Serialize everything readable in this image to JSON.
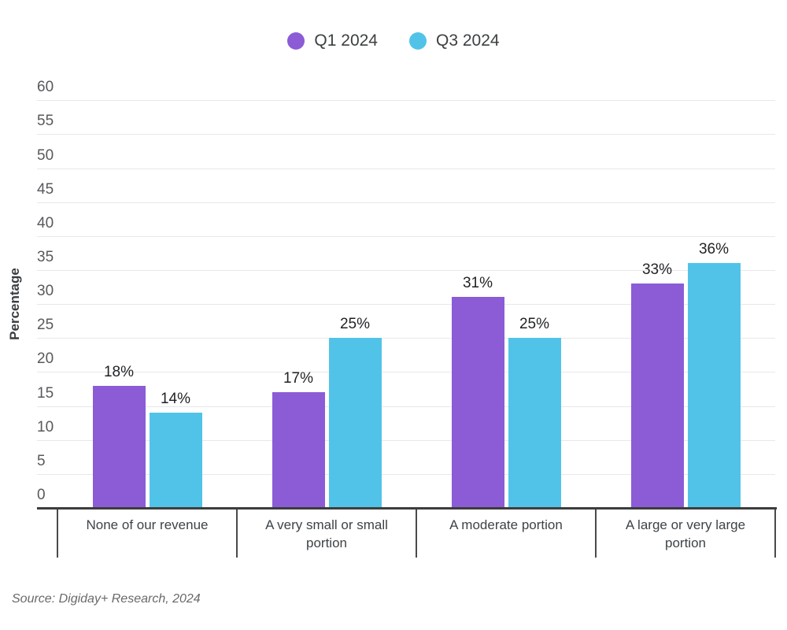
{
  "legend": {
    "items": [
      {
        "label": "Q1 2024",
        "color": "#8B5CD6"
      },
      {
        "label": "Q3 2024",
        "color": "#52C3E8"
      }
    ]
  },
  "chart_data": {
    "type": "bar",
    "title": "",
    "categories": [
      "None of our revenue",
      "A very small or small portion",
      "A moderate portion",
      "A large or very large portion"
    ],
    "series": [
      {
        "name": "Q1 2024",
        "color": "#8B5CD6",
        "values": [
          18,
          17,
          31,
          33
        ]
      },
      {
        "name": "Q3 2024",
        "color": "#52C3E8",
        "values": [
          14,
          25,
          25,
          36
        ]
      }
    ],
    "xlabel": "",
    "ylabel": "Percentage",
    "ylim": [
      0,
      60
    ],
    "ytick_step": 5,
    "value_suffix": "%",
    "grid": true,
    "legend_position": "top"
  },
  "source": "Source: Digiday+ Research, 2024"
}
